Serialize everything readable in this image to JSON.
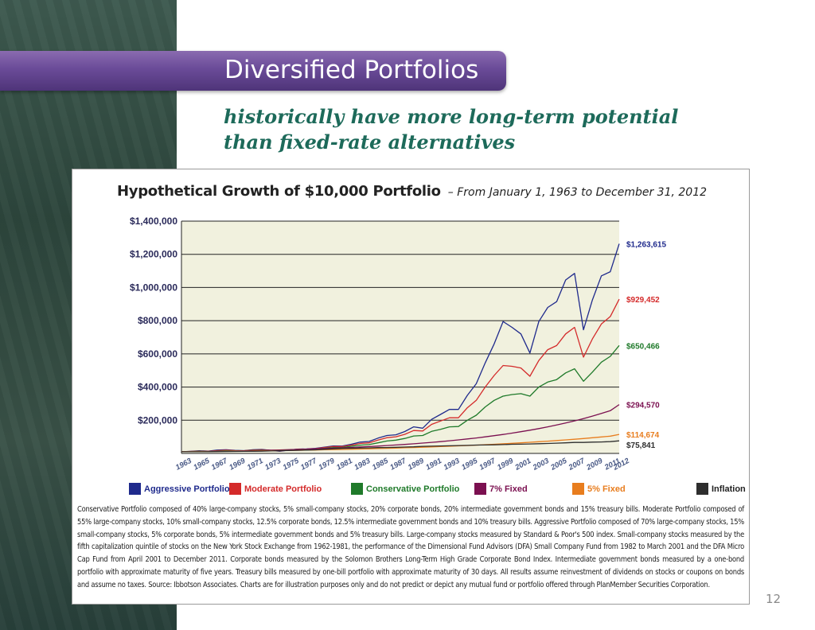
{
  "slide": {
    "title": "Diversified Portfolios",
    "subtitle_line1": "historically have more long-term potential",
    "subtitle_line2": "than fixed-rate alternatives",
    "page_number": "12"
  },
  "chart_data": {
    "type": "line",
    "title": "Hypothetical Growth of $10,000 Portfolio",
    "subtitle": "– From January 1, 1963 to December 31, 2012",
    "x": [
      1963,
      1964,
      1965,
      1966,
      1967,
      1968,
      1969,
      1970,
      1971,
      1972,
      1973,
      1974,
      1975,
      1976,
      1977,
      1978,
      1979,
      1980,
      1981,
      1982,
      1983,
      1984,
      1985,
      1986,
      1987,
      1988,
      1989,
      1990,
      1991,
      1992,
      1993,
      1994,
      1995,
      1996,
      1997,
      1998,
      1999,
      2000,
      2001,
      2002,
      2003,
      2004,
      2005,
      2006,
      2007,
      2008,
      2009,
      2010,
      2011,
      2012
    ],
    "x_tick_labels": [
      "1963",
      "1965",
      "1967",
      "1969",
      "1971",
      "1973",
      "1975",
      "1977",
      "1979",
      "1981",
      "1983",
      "1985",
      "1987",
      "1989",
      "1991",
      "1993",
      "1995",
      "1997",
      "1999",
      "2001",
      "2003",
      "2005",
      "2007",
      "2009",
      "2011",
      "2012"
    ],
    "y_tick_labels": [
      "$1,400,000",
      "$1,200,000",
      "$1,000,000",
      "$800,000",
      "$600,000",
      "$400,000",
      "$200,000"
    ],
    "y_ticks": [
      1400000,
      1200000,
      1000000,
      800000,
      600000,
      400000,
      200000
    ],
    "ylim": [
      0,
      1400000
    ],
    "grid": true,
    "series": [
      {
        "name": "Aggressive Portfolio",
        "color": "#1f2a8c",
        "end_label": "$1,263,615",
        "values": [
          10000,
          12500,
          16000,
          14000,
          20000,
          22000,
          18000,
          17000,
          22000,
          24000,
          18000,
          13000,
          20000,
          26000,
          27000,
          30000,
          38000,
          45000,
          44000,
          55000,
          68000,
          72000,
          92000,
          108000,
          112000,
          132000,
          160000,
          152000,
          205000,
          235000,
          265000,
          265000,
          350000,
          420000,
          545000,
          660000,
          795000,
          760000,
          720000,
          605000,
          795000,
          880000,
          915000,
          1045000,
          1085000,
          745000,
          925000,
          1070000,
          1095000,
          1263615
        ]
      },
      {
        "name": "Moderate Portfolio",
        "color": "#d42a2a",
        "end_label": "$929,452",
        "values": [
          10000,
          11800,
          14000,
          13000,
          17000,
          19000,
          17000,
          16500,
          20000,
          22000,
          18000,
          15000,
          20000,
          25000,
          26000,
          29000,
          35000,
          41000,
          41000,
          50000,
          60000,
          64000,
          80000,
          95000,
          100000,
          115000,
          138000,
          135000,
          175000,
          195000,
          215000,
          215000,
          275000,
          320000,
          400000,
          470000,
          530000,
          525000,
          515000,
          465000,
          560000,
          625000,
          650000,
          720000,
          760000,
          580000,
          690000,
          780000,
          825000,
          929452
        ]
      },
      {
        "name": "Conservative Portfolio",
        "color": "#1f7a2a",
        "end_label": "$650,466",
        "values": [
          10000,
          11200,
          12500,
          12200,
          14500,
          16000,
          15000,
          15500,
          18000,
          20000,
          18000,
          16500,
          20000,
          24000,
          25000,
          27000,
          31000,
          35000,
          36000,
          43000,
          50000,
          53000,
          64000,
          75000,
          80000,
          90000,
          105000,
          108000,
          133000,
          145000,
          160000,
          162000,
          200000,
          230000,
          280000,
          320000,
          345000,
          355000,
          360000,
          345000,
          400000,
          430000,
          445000,
          485000,
          510000,
          435000,
          490000,
          550000,
          585000,
          650466
        ]
      },
      {
        "name": "7% Fixed",
        "color": "#7b1050",
        "end_label": "$294,570",
        "values": [
          10000,
          10700,
          11449,
          12250,
          13108,
          14026,
          15007,
          16058,
          17182,
          18385,
          19672,
          21049,
          22522,
          24098,
          25785,
          27590,
          29522,
          31588,
          33799,
          36165,
          38697,
          41406,
          44304,
          47405,
          50724,
          54274,
          58074,
          62139,
          66488,
          71143,
          76123,
          81451,
          87153,
          93253,
          99781,
          106766,
          114239,
          122236,
          130793,
          139948,
          149745,
          160227,
          171443,
          183444,
          196285,
          210025,
          224726,
          240457,
          257289,
          294570
        ]
      },
      {
        "name": "5% Fixed",
        "color": "#e87d1e",
        "end_label": "$114,674",
        "values": [
          10000,
          10500,
          11025,
          11576,
          12155,
          12763,
          13401,
          14071,
          14775,
          15513,
          16289,
          17103,
          17959,
          18856,
          19799,
          20789,
          21829,
          22920,
          24066,
          25270,
          26533,
          27860,
          29253,
          30715,
          32251,
          33864,
          35557,
          37335,
          39201,
          41161,
          43219,
          45380,
          47649,
          50032,
          52533,
          55160,
          57918,
          60814,
          63855,
          67048,
          70400,
          73920,
          77616,
          81497,
          85572,
          89850,
          94343,
          99060,
          104013,
          114674
        ]
      },
      {
        "name": "Inflation",
        "color": "#2e2e2e",
        "end_label": "$75,841",
        "values": [
          10000,
          10100,
          10300,
          10600,
          10900,
          11400,
          12000,
          12700,
          13100,
          13600,
          14800,
          16600,
          17800,
          18700,
          20000,
          21800,
          24700,
          27700,
          30000,
          31100,
          32400,
          33600,
          34900,
          35300,
          36700,
          38200,
          40000,
          42500,
          43600,
          44900,
          46200,
          47400,
          48600,
          50200,
          51000,
          51900,
          53300,
          55000,
          55800,
          57200,
          58300,
          60000,
          62000,
          63600,
          66200,
          66200,
          68100,
          69000,
          71100,
          75841
        ]
      }
    ],
    "footnote": "Conservative Portfolio composed of 40% large-company stocks, 5% small-company stocks, 20% corporate bonds, 20% intermediate government bonds and 15% treasury bills. Moderate Portfolio composed of 55% large-company stocks, 10% small-company stocks, 12.5% corporate bonds, 12.5% intermediate government bonds and 10% treasury bills. Aggressive Portfolio composed of 70% large-company stocks, 15% small-company stocks, 5% corporate bonds, 5% intermediate government bonds and 5% treasury bills. Large-company stocks measured by Standard & Poor's 500 index. Small-company stocks measured by the fifth capitalization quintile of stocks on the New York Stock Exchange from 1962-1981, the performance of the Dimensional Fund Advisors (DFA) Small Company Fund from 1982 to March 2001 and the DFA Micro Cap Fund from April 2001 to December 2011. Corporate bonds measured by the Solomon Brothers Long-Term High Grade Corporate Bond Index. Intermediate government bonds measured by a one-bond portfolio with approximate maturity of five years. Treasury bills measured by one-bill portfolio with approximate maturity of 30 days. All results assume reinvestment of dividends on stocks or coupons on bonds and assume no taxes. Source: Ibbotson Associates. Charts are for illustration purposes only and do not predict or depict any mutual fund or portfolio offered through PlanMember Securities Corporation."
  }
}
